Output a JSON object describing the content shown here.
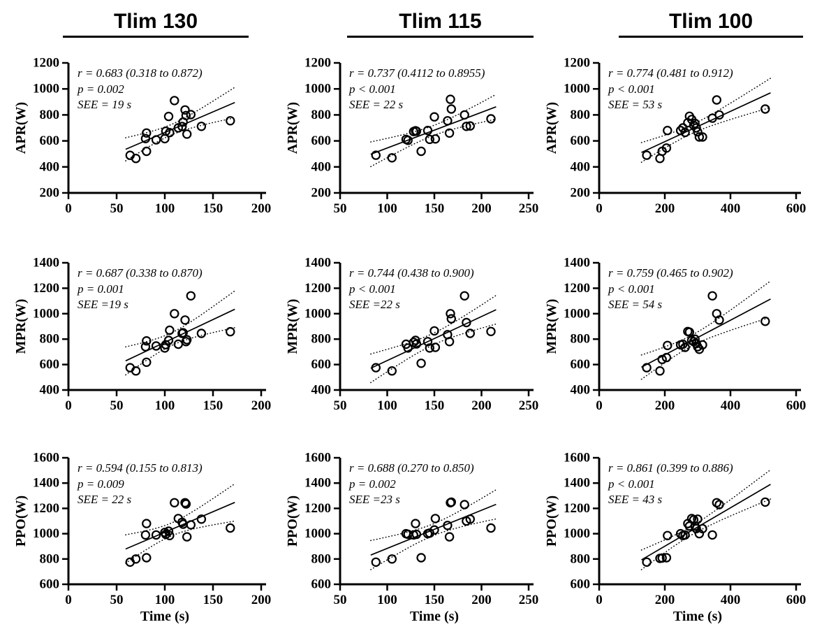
{
  "figure": {
    "background": "#ffffff",
    "ink_color": "#000000",
    "marker": "open-circle",
    "fit_line_style": "solid",
    "ci_line_style": "dotted",
    "columns": [
      {
        "title": "Tlim 130"
      },
      {
        "title": "Tlim 115"
      },
      {
        "title": "Tlim 100"
      }
    ],
    "rows": [
      {
        "ylabel": "APR(W)"
      },
      {
        "ylabel": "MPR(W)"
      },
      {
        "ylabel": "PPO(W)"
      }
    ]
  },
  "chart_data": [
    {
      "id": "apr-tlim130",
      "type": "scatter",
      "row": 0,
      "col": 0,
      "group": "Tlim 130",
      "ylabel": "APR(W)",
      "xlabel": "",
      "stats": {
        "r": "r = 0.683 (0.318 to 0.872)",
        "p": "p = 0.002",
        "see": "SEE = 19 s"
      },
      "xlim": [
        0,
        200
      ],
      "xticks": [
        0,
        50,
        100,
        150,
        200
      ],
      "ylim": [
        200,
        1200
      ],
      "yticks": [
        200,
        400,
        600,
        800,
        1000,
        1200
      ],
      "x": [
        64,
        70,
        80,
        81,
        81,
        91,
        100,
        101,
        104,
        105,
        110,
        114,
        118,
        119,
        121,
        122,
        123,
        127,
        138,
        168
      ],
      "y": [
        489,
        465,
        618,
        520,
        661,
        608,
        617,
        675,
        788,
        664,
        910,
        700,
        711,
        745,
        838,
        795,
        652,
        802,
        712,
        755
      ]
    },
    {
      "id": "apr-tlim115",
      "type": "scatter",
      "row": 0,
      "col": 1,
      "group": "Tlim 115",
      "ylabel": "APR(W)",
      "xlabel": "",
      "stats": {
        "r": "r = 0.737 (0.4112 to 0.8955)",
        "p": "p < 0.001",
        "see": "SEE = 22 s"
      },
      "xlim": [
        50,
        250
      ],
      "xticks": [
        50,
        100,
        150,
        200,
        250
      ],
      "ylim": [
        200,
        1200
      ],
      "yticks": [
        200,
        400,
        600,
        800,
        1000,
        1200
      ],
      "x": [
        88,
        105,
        120,
        122,
        128,
        130,
        131,
        136,
        143,
        145,
        150,
        151,
        164,
        166,
        167,
        168,
        182,
        184,
        188,
        210
      ],
      "y": [
        490,
        470,
        612,
        605,
        672,
        678,
        675,
        520,
        680,
        612,
        785,
        615,
        755,
        660,
        920,
        845,
        800,
        712,
        715,
        770
      ]
    },
    {
      "id": "apr-tlim100",
      "type": "scatter",
      "row": 0,
      "col": 2,
      "group": "Tlim 100",
      "ylabel": "APR(W)",
      "xlabel": "",
      "stats": {
        "r": "r = 0.774 (0.481 to 0.912)",
        "p": "p < 0.001",
        "see": "SEE = 53 s"
      },
      "xlim": [
        0,
        600
      ],
      "xticks": [
        0,
        200,
        400,
        600
      ],
      "ylim": [
        200,
        1200
      ],
      "yticks": [
        200,
        400,
        600,
        800,
        1000,
        1200
      ],
      "x": [
        145,
        185,
        192,
        205,
        208,
        248,
        255,
        262,
        270,
        275,
        282,
        288,
        292,
        296,
        300,
        305,
        315,
        345,
        358,
        366,
        506
      ],
      "y": [
        490,
        465,
        520,
        545,
        680,
        680,
        700,
        665,
        740,
        790,
        765,
        720,
        735,
        700,
        670,
        630,
        630,
        775,
        915,
        800,
        845
      ]
    },
    {
      "id": "mpr-tlim130",
      "type": "scatter",
      "row": 1,
      "col": 0,
      "group": "Tlim 130",
      "ylabel": "MPR(W)",
      "xlabel": "",
      "stats": {
        "r": "r = 0.687 (0.338 to 0.870)",
        "p": "p = 0.001",
        "see": "SEE =19 s"
      },
      "xlim": [
        0,
        200
      ],
      "xticks": [
        0,
        50,
        100,
        150,
        200
      ],
      "ylim": [
        400,
        1400
      ],
      "yticks": [
        400,
        600,
        800,
        1000,
        1200,
        1400
      ],
      "x": [
        64,
        70,
        80,
        81,
        81,
        91,
        100,
        101,
        104,
        105,
        110,
        114,
        118,
        119,
        121,
        122,
        123,
        127,
        138,
        168
      ],
      "y": [
        575,
        550,
        740,
        618,
        786,
        746,
        730,
        756,
        790,
        870,
        1000,
        760,
        845,
        850,
        950,
        780,
        795,
        1140,
        845,
        858
      ]
    },
    {
      "id": "mpr-tlim115",
      "type": "scatter",
      "row": 1,
      "col": 1,
      "group": "Tlim 115",
      "ylabel": "MPR(W)",
      "xlabel": "",
      "stats": {
        "r": "r = 0.744 (0.438 to 0.900)",
        "p": "p < 0.001",
        "see": "SEE =22 s"
      },
      "xlim": [
        50,
        250
      ],
      "xticks": [
        50,
        100,
        150,
        200,
        250
      ],
      "ylim": [
        400,
        1400
      ],
      "yticks": [
        400,
        600,
        800,
        1000,
        1200,
        1400
      ],
      "x": [
        88,
        105,
        120,
        122,
        128,
        130,
        131,
        136,
        143,
        145,
        150,
        151,
        164,
        166,
        167,
        168,
        182,
        184,
        188,
        210
      ],
      "y": [
        575,
        550,
        760,
        730,
        775,
        790,
        762,
        610,
        780,
        730,
        865,
        735,
        835,
        780,
        1000,
        960,
        1140,
        930,
        845,
        860
      ]
    },
    {
      "id": "mpr-tlim100",
      "type": "scatter",
      "row": 1,
      "col": 2,
      "group": "Tlim 100",
      "ylabel": "MPR(W)",
      "xlabel": "",
      "stats": {
        "r": "r = 0.759 (0.465 to 0.902)",
        "p": "p < 0.001",
        "see": "SEE = 54 s"
      },
      "xlim": [
        0,
        600
      ],
      "xticks": [
        0,
        200,
        400,
        600
      ],
      "ylim": [
        400,
        1400
      ],
      "yticks": [
        400,
        600,
        800,
        1000,
        1200,
        1400
      ],
      "x": [
        145,
        185,
        192,
        205,
        208,
        248,
        255,
        262,
        270,
        275,
        282,
        288,
        292,
        296,
        300,
        305,
        315,
        345,
        358,
        366,
        506
      ],
      "y": [
        575,
        550,
        640,
        655,
        750,
        755,
        760,
        735,
        860,
        855,
        790,
        780,
        800,
        765,
        740,
        720,
        755,
        1140,
        1000,
        950,
        940
      ]
    },
    {
      "id": "ppo-tlim130",
      "type": "scatter",
      "row": 2,
      "col": 0,
      "group": "Tlim 130",
      "ylabel": "PPO(W)",
      "xlabel": "Time (s)",
      "stats": {
        "r": "r = 0.594 (0.155 to 0.813)",
        "p": "p = 0.009",
        "see": "SEE = 22 s"
      },
      "xlim": [
        0,
        200
      ],
      "xticks": [
        0,
        50,
        100,
        150,
        200
      ],
      "ylim": [
        600,
        1600
      ],
      "yticks": [
        600,
        800,
        1000,
        1200,
        1400,
        1600
      ],
      "x": [
        64,
        70,
        80,
        81,
        81,
        91,
        100,
        101,
        104,
        105,
        110,
        114,
        118,
        119,
        121,
        122,
        123,
        127,
        138,
        168
      ],
      "y": [
        775,
        800,
        990,
        810,
        1080,
        990,
        1010,
        995,
        1020,
        985,
        1245,
        1120,
        1090,
        1075,
        1245,
        1235,
        975,
        1070,
        1115,
        1045
      ]
    },
    {
      "id": "ppo-tlim115",
      "type": "scatter",
      "row": 2,
      "col": 1,
      "group": "Tlim 115",
      "ylabel": "PPO(W)",
      "xlabel": "Time (s)",
      "stats": {
        "r": "r = 0.688 (0.270 to 0.850)",
        "p": "p = 0.002",
        "see": "SEE =23 s"
      },
      "xlim": [
        50,
        250
      ],
      "xticks": [
        50,
        100,
        150,
        200,
        250
      ],
      "ylim": [
        600,
        1600
      ],
      "yticks": [
        600,
        800,
        1000,
        1200,
        1400,
        1600
      ],
      "x": [
        88,
        105,
        120,
        122,
        128,
        130,
        131,
        136,
        143,
        145,
        150,
        151,
        164,
        166,
        167,
        168,
        182,
        184,
        188,
        210
      ],
      "y": [
        775,
        800,
        1000,
        995,
        990,
        1080,
        995,
        810,
        1000,
        1005,
        1030,
        1120,
        1065,
        975,
        1245,
        1250,
        1230,
        1100,
        1115,
        1045
      ]
    },
    {
      "id": "ppo-tlim100",
      "type": "scatter",
      "row": 2,
      "col": 2,
      "group": "Tlim 100",
      "ylabel": "PPO(W)",
      "xlabel": "Time (s)",
      "stats": {
        "r": "r = 0.861 (0.399 to 0.886)",
        "p": "p < 0.001",
        "see": "SEE = 43 s"
      },
      "xlim": [
        0,
        600
      ],
      "xticks": [
        0,
        200,
        400,
        600
      ],
      "ylim": [
        600,
        1600
      ],
      "yticks": [
        600,
        800,
        1000,
        1200,
        1400,
        1600
      ],
      "x": [
        145,
        185,
        192,
        205,
        208,
        248,
        255,
        262,
        270,
        275,
        282,
        288,
        292,
        296,
        300,
        305,
        315,
        345,
        358,
        366,
        506
      ],
      "y": [
        775,
        805,
        808,
        810,
        985,
        1000,
        985,
        990,
        1080,
        1060,
        1120,
        1110,
        1060,
        1040,
        1115,
        1000,
        1040,
        990,
        1245,
        1230,
        1250
      ]
    }
  ]
}
